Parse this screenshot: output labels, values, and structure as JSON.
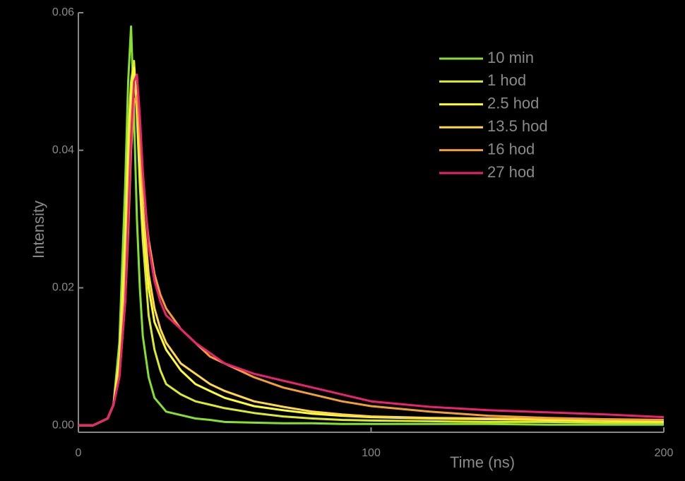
{
  "chart_data": {
    "type": "line",
    "x_label": "Time (ns)",
    "y_label": "Intensity",
    "x": [
      0,
      5,
      10,
      12,
      14,
      16,
      17,
      18,
      19,
      20,
      21,
      22,
      24,
      26,
      28,
      30,
      35,
      40,
      45,
      50,
      60,
      70,
      80,
      90,
      100,
      120,
      140,
      160,
      180,
      200
    ],
    "series": [
      {
        "name": "10 min",
        "color": "#86e02c",
        "values": [
          0,
          0,
          0.001,
          0.003,
          0.012,
          0.035,
          0.05,
          0.058,
          0.045,
          0.03,
          0.02,
          0.013,
          0.007,
          0.004,
          0.003,
          0.002,
          0.0015,
          0.001,
          0.0008,
          0.0005,
          0.0004,
          0.0003,
          0.0003,
          0.0002,
          0.0002,
          0.0002,
          0.0002,
          0.0001,
          0.0001,
          0.0001
        ]
      },
      {
        "name": "1 hod",
        "color": "#dcea2c",
        "values": [
          0,
          0,
          0.001,
          0.003,
          0.01,
          0.028,
          0.042,
          0.05,
          0.053,
          0.045,
          0.035,
          0.027,
          0.016,
          0.011,
          0.008,
          0.006,
          0.0045,
          0.0035,
          0.003,
          0.0025,
          0.0018,
          0.0013,
          0.001,
          0.0008,
          0.0007,
          0.0006,
          0.0005,
          0.0005,
          0.0004,
          0.0004
        ]
      },
      {
        "name": "2.5 hod",
        "color": "#ffff33",
        "values": [
          0,
          0,
          0.001,
          0.003,
          0.009,
          0.025,
          0.038,
          0.048,
          0.052,
          0.047,
          0.038,
          0.03,
          0.02,
          0.015,
          0.013,
          0.011,
          0.008,
          0.006,
          0.005,
          0.004,
          0.0028,
          0.0022,
          0.0017,
          0.0014,
          0.0012,
          0.001,
          0.0009,
          0.0008,
          0.0007,
          0.0006
        ]
      },
      {
        "name": "13.5 hod",
        "color": "#ffd84a",
        "values": [
          0,
          0,
          0.001,
          0.003,
          0.008,
          0.022,
          0.034,
          0.045,
          0.05,
          0.048,
          0.04,
          0.032,
          0.022,
          0.017,
          0.014,
          0.012,
          0.009,
          0.0075,
          0.006,
          0.005,
          0.0035,
          0.0027,
          0.002,
          0.0016,
          0.0013,
          0.0011,
          0.001,
          0.0009,
          0.0008,
          0.0007
        ]
      },
      {
        "name": "16 hod",
        "color": "#f2a033",
        "values": [
          0,
          0,
          0.001,
          0.003,
          0.007,
          0.018,
          0.028,
          0.04,
          0.047,
          0.048,
          0.042,
          0.035,
          0.027,
          0.022,
          0.019,
          0.017,
          0.014,
          0.012,
          0.01,
          0.009,
          0.007,
          0.0055,
          0.0045,
          0.0035,
          0.0028,
          0.002,
          0.0014,
          0.0011,
          0.0009,
          0.0008
        ]
      },
      {
        "name": "27 hod",
        "color": "#ea2370",
        "values": [
          0,
          0,
          0.001,
          0.003,
          0.007,
          0.018,
          0.03,
          0.042,
          0.05,
          0.051,
          0.045,
          0.037,
          0.026,
          0.021,
          0.018,
          0.016,
          0.014,
          0.012,
          0.0105,
          0.009,
          0.0075,
          0.0065,
          0.0055,
          0.0045,
          0.0035,
          0.0027,
          0.0022,
          0.0019,
          0.0016,
          0.0012
        ]
      }
    ],
    "xlim": [
      0,
      200
    ],
    "xticks": [
      0,
      100,
      200
    ],
    "ylim": [
      -0.001,
      0.06
    ],
    "yticks": [
      {
        "value": 0,
        "label": "0.00"
      },
      0.02,
      0.04,
      0.06
    ],
    "legend": "upper right",
    "background": "#000000"
  }
}
